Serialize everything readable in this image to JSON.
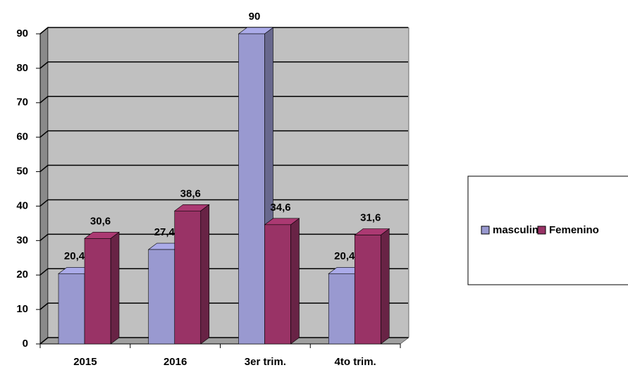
{
  "chart_data": {
    "type": "bar3d",
    "categories": [
      "2015",
      "2016",
      "3er trim.",
      "4to trim."
    ],
    "series": [
      {
        "name": "masculino",
        "color": "#9999d0",
        "values": [
          20.4,
          27.4,
          90,
          20.4
        ],
        "value_labels": [
          "20,4",
          "27,4",
          "90",
          "20,4"
        ]
      },
      {
        "name": "Femenino",
        "color": "#993366",
        "values": [
          30.6,
          38.6,
          34.6,
          31.6
        ],
        "value_labels": [
          "30,6",
          "38,6",
          "34,6",
          "31,6"
        ]
      }
    ],
    "ylim": [
      0,
      90
    ],
    "yticks": [
      0,
      10,
      20,
      30,
      40,
      50,
      60,
      70,
      80,
      90
    ],
    "grid": true,
    "legend": "right"
  }
}
